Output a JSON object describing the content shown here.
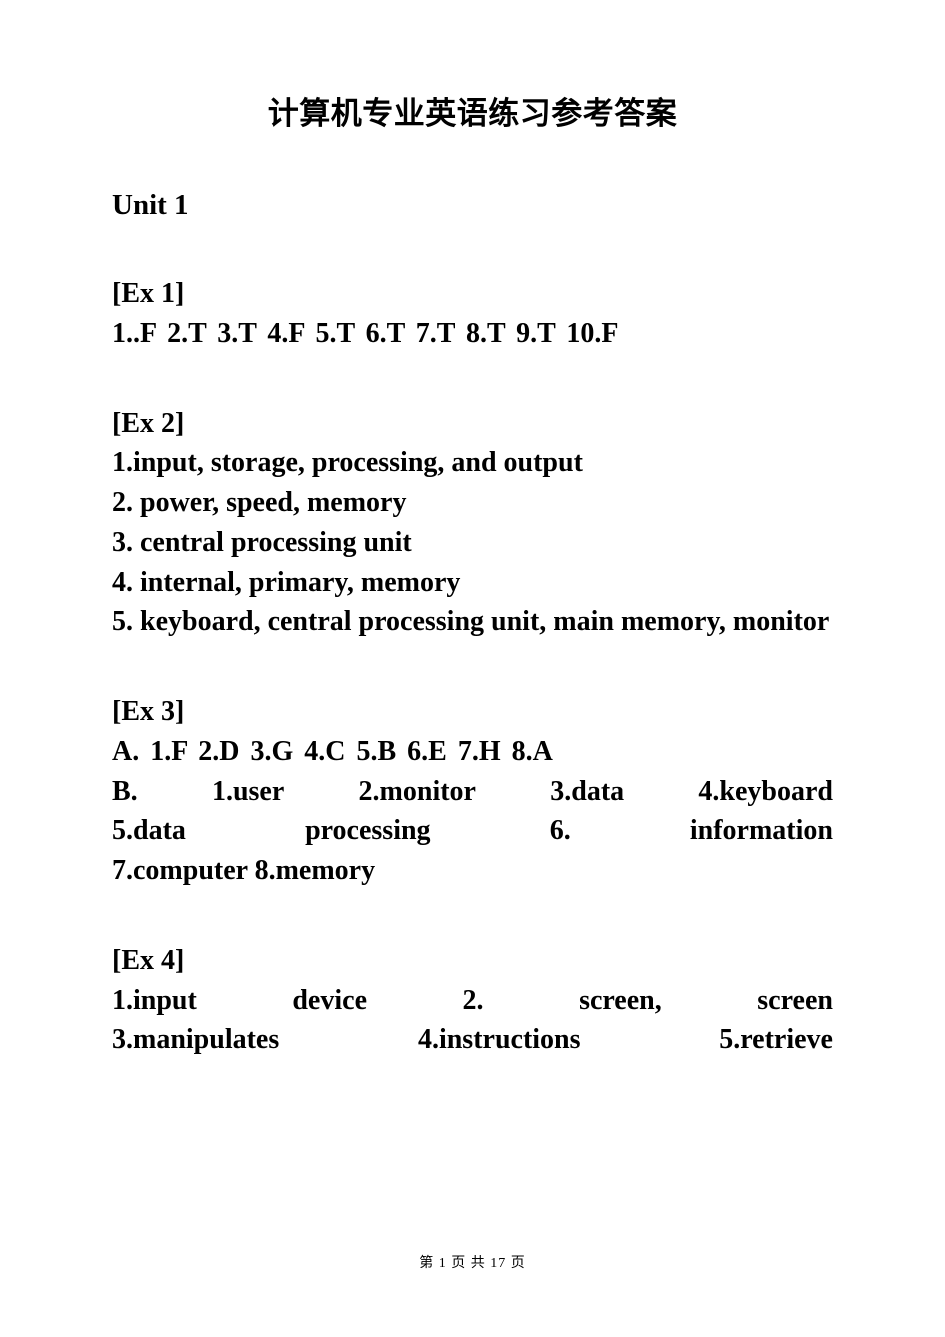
{
  "title": "计算机专业英语练习参考答案",
  "unit_heading": "Unit 1",
  "ex1": {
    "label": "[Ex 1]",
    "answers": "1..F  2.T  3.T  4.F  5.T  6.T  7.T  8.T  9.T  10.F"
  },
  "ex2": {
    "label": "[Ex 2]",
    "items": [
      "1.input, storage, processing, and output",
      "2. power, speed, memory",
      "3. central processing unit",
      "4. internal, primary, memory",
      "5. keyboard, central processing unit, main memory, monitor"
    ]
  },
  "ex3": {
    "label": "[Ex 3]",
    "partA": "A.  1.F  2.D  3.G  4.C  5.B  6.E  7.H  8.A",
    "partB_line1": {
      "p1": "B.",
      "p2": "1.user",
      "p3": "2.monitor",
      "p4": "3.data",
      "p5": "4.keyboard"
    },
    "partB_line2": {
      "p1": "5.data",
      "p2": "processing",
      "p3": "6.",
      "p4": "information"
    },
    "partB_line3": "7.computer  8.memory"
  },
  "ex4": {
    "label": "[Ex 4]",
    "line1": {
      "p1": "1.input",
      "p2": "device",
      "p3": "2.",
      "p4": "screen,",
      "p5": "screen"
    },
    "line2": {
      "p1": "3.manipulates",
      "p2": "4.instructions",
      "p3": "5.retrieve"
    }
  },
  "footer": {
    "prefix": "第",
    "current": "1",
    "mid": "页 共",
    "total": "17",
    "suffix": "页"
  },
  "colors": {
    "background": "#ffffff",
    "text": "#000000"
  },
  "typography": {
    "title_fontsize": 31,
    "body_fontsize": 28,
    "footer_fontsize": 14,
    "line_height": 1.42
  }
}
